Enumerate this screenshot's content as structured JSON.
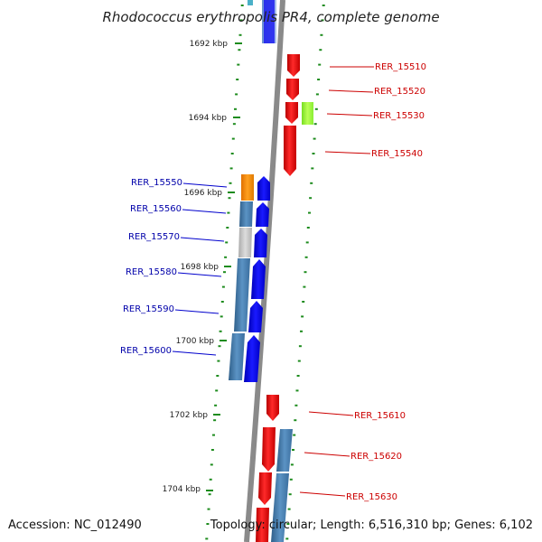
{
  "title": "Rhodococcus erythropolis PR4, complete genome",
  "accession": "Accession: NC_012490",
  "topology": "Topology: circular; Length: 6,516,310 bp; Genes: 6,102",
  "colors": {
    "forward": "#ff0000",
    "reverse": "#0000ff",
    "backbone": "#8a8a8a",
    "tick": "#1e8c1e",
    "label_right": "#cc0000",
    "label_left": "#0000aa",
    "cog_steelblue": "#4682b4",
    "cog_orange": "#ff8c00",
    "cog_lightgray": "#c8c8c8",
    "cog_lime": "#99ff33"
  },
  "kbp_marks": [
    "1692 kbp",
    "1694 kbp",
    "1696 kbp",
    "1698 kbp",
    "1700 kbp",
    "1702 kbp",
    "1704 kbp"
  ],
  "genes_right": [
    {
      "label": "RER_15510",
      "strand": "+"
    },
    {
      "label": "RER_15520",
      "strand": "+"
    },
    {
      "label": "RER_15530",
      "strand": "+"
    },
    {
      "label": "RER_15540",
      "strand": "+"
    },
    {
      "label": "RER_15610",
      "strand": "+"
    },
    {
      "label": "RER_15620",
      "strand": "+"
    },
    {
      "label": "RER_15630",
      "strand": "+"
    }
  ],
  "genes_left": [
    {
      "label": "RER_15550",
      "strand": "-"
    },
    {
      "label": "RER_15560",
      "strand": "-"
    },
    {
      "label": "RER_15570",
      "strand": "-"
    },
    {
      "label": "RER_15580",
      "strand": "-"
    },
    {
      "label": "RER_15590",
      "strand": "-"
    },
    {
      "label": "RER_15600",
      "strand": "-"
    }
  ]
}
